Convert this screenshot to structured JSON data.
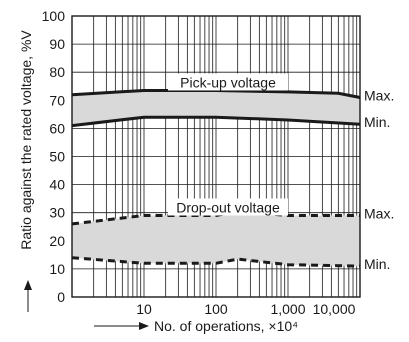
{
  "chart_data": {
    "type": "area",
    "xscale": "log",
    "xlim": [
      1,
      10000
    ],
    "ylim": [
      0,
      100
    ],
    "grid": true,
    "x_ticks": [
      10,
      100,
      1000,
      10000
    ],
    "x_tick_labels": [
      "10",
      "100",
      "1,000",
      "10,000"
    ],
    "y_ticks": [
      0,
      10,
      20,
      30,
      40,
      50,
      60,
      70,
      80,
      90,
      100
    ],
    "y_tick_labels": [
      "0",
      "10",
      "20",
      "30",
      "40",
      "50",
      "60",
      "70",
      "80",
      "90",
      "100"
    ],
    "xlabel": "No. of operations, ×10⁴",
    "ylabel": "Ratio against the rated voltage, %V",
    "series": [
      {
        "name": "Pick-up voltage",
        "style": "solid",
        "max_label": "Max.",
        "min_label": "Min.",
        "max": {
          "x": [
            1,
            10,
            100,
            1000,
            5000,
            10000
          ],
          "y": [
            72,
            73.5,
            73.5,
            73,
            72.5,
            71
          ]
        },
        "min": {
          "x": [
            1,
            10,
            100,
            1000,
            10000
          ],
          "y": [
            61,
            64,
            64,
            63,
            61.5
          ]
        }
      },
      {
        "name": "Drop-out voltage",
        "style": "dashed",
        "max_label": "Max.",
        "min_label": "Min.",
        "max": {
          "x": [
            1,
            10,
            100,
            200,
            1000,
            10000
          ],
          "y": [
            26,
            29,
            29,
            30.5,
            29,
            29
          ]
        },
        "min": {
          "x": [
            1,
            10,
            100,
            200,
            1000,
            10000
          ],
          "y": [
            14,
            12,
            12,
            13.5,
            11.5,
            11
          ]
        }
      }
    ]
  }
}
